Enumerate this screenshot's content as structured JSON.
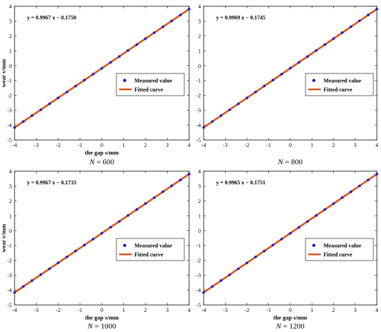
{
  "chart_data": [
    {
      "type": "scatter",
      "panel": "top-left",
      "xlabel": "the gap s/mm",
      "ylabel": "wear v/mm",
      "xlim": [
        -4,
        4
      ],
      "ylim": [
        -5,
        4
      ],
      "xticks": [
        "-4",
        "-3",
        "-2",
        "-1",
        "0",
        "1",
        "2",
        "3",
        "4"
      ],
      "yticks": [
        "4",
        "3",
        "2",
        "1",
        "0",
        "-1",
        "-2",
        "-3",
        "-4",
        "-5"
      ],
      "equation": "y = 0.9967 x − 0.1750",
      "slope": 0.9967,
      "intercept": -0.175,
      "caption_var": "N",
      "caption_val": " = 600",
      "legend": {
        "position": "center-right",
        "measured": "Measured value",
        "fitted": "Fitted curve"
      },
      "series": [
        {
          "name": "Measured value",
          "x": [
            -4,
            -3.6,
            -3.2,
            -2.8,
            -2.4,
            -2,
            -1.6,
            -1.2,
            -0.8,
            -0.4,
            0,
            0.4,
            0.8,
            1.2,
            1.6,
            2,
            2.4,
            2.8,
            3.2,
            3.6,
            4
          ],
          "y": [
            -4.16,
            -3.76,
            -3.36,
            -2.97,
            -2.57,
            -2.17,
            -1.77,
            -1.37,
            -0.97,
            -0.57,
            -0.18,
            0.22,
            0.62,
            1.02,
            1.42,
            1.82,
            2.22,
            2.62,
            3.01,
            3.41,
            3.81
          ]
        },
        {
          "name": "Fitted curve",
          "x": [
            -4,
            4
          ],
          "y": [
            -4.16,
            3.81
          ]
        }
      ],
      "colors": {
        "marker": "#1a1adb",
        "line": "#d95319"
      }
    },
    {
      "type": "scatter",
      "panel": "top-right",
      "xlabel": "",
      "ylabel": "",
      "xlim": [
        -4,
        4
      ],
      "ylim": [
        -5,
        4
      ],
      "xticks": [
        "-4",
        "-3",
        "-2",
        "-1",
        "0",
        "1",
        "2",
        "3",
        "4"
      ],
      "yticks": [
        "4",
        "3",
        "2",
        "1",
        "0",
        "-1",
        "-2",
        "-3",
        "-4",
        "-5"
      ],
      "equation": "y = 0.9969 x − 0.1745",
      "slope": 0.9969,
      "intercept": -0.1745,
      "caption_var": "N",
      "caption_val": " = 800",
      "legend": {
        "position": "center-right",
        "measured": "Measured value",
        "fitted": "Fitted curve"
      },
      "series": [
        {
          "name": "Measured value",
          "x": [
            -4,
            -3.6,
            -3.2,
            -2.8,
            -2.4,
            -2,
            -1.6,
            -1.2,
            -0.8,
            -0.4,
            0,
            0.4,
            0.8,
            1.2,
            1.6,
            2,
            2.4,
            2.8,
            3.2,
            3.6,
            4
          ],
          "y": [
            -4.16,
            -3.76,
            -3.36,
            -2.97,
            -2.57,
            -2.17,
            -1.77,
            -1.37,
            -0.97,
            -0.57,
            -0.17,
            0.22,
            0.62,
            1.02,
            1.42,
            1.82,
            2.22,
            2.62,
            3.02,
            3.41,
            3.81
          ]
        },
        {
          "name": "Fitted curve",
          "x": [
            -4,
            4
          ],
          "y": [
            -4.16,
            3.81
          ]
        }
      ],
      "colors": {
        "marker": "#1a1adb",
        "line": "#d95319"
      }
    },
    {
      "type": "scatter",
      "panel": "bottom-left",
      "xlabel": "the gap s/mm",
      "ylabel": "wear v/mm",
      "xlim": [
        -4,
        4
      ],
      "ylim": [
        -5,
        4
      ],
      "xticks": [
        "-4",
        "-3",
        "-2",
        "-1",
        "0",
        "1",
        "2",
        "3",
        "4"
      ],
      "yticks": [
        "4",
        "3",
        "2",
        "1",
        "0",
        "-1",
        "-2",
        "-3",
        "-4",
        "-5"
      ],
      "equation": "y = 0.9967 x − 0.1733",
      "slope": 0.9967,
      "intercept": -0.1733,
      "caption_var": "N",
      "caption_val": " = 1000",
      "legend": {
        "position": "center-right",
        "measured": "Measured value",
        "fitted": "Fitted curve"
      },
      "series": [
        {
          "name": "Measured value",
          "x": [
            -4,
            -3.6,
            -3.2,
            -2.8,
            -2.4,
            -2,
            -1.6,
            -1.2,
            -0.8,
            -0.4,
            0,
            0.4,
            0.8,
            1.2,
            1.6,
            2,
            2.4,
            2.8,
            3.2,
            3.6,
            4
          ],
          "y": [
            -4.16,
            -3.76,
            -3.36,
            -2.96,
            -2.57,
            -2.17,
            -1.77,
            -1.37,
            -0.97,
            -0.57,
            -0.17,
            0.23,
            0.62,
            1.02,
            1.42,
            1.82,
            2.22,
            2.62,
            3.02,
            3.41,
            3.81
          ]
        },
        {
          "name": "Fitted curve",
          "x": [
            -4,
            4
          ],
          "y": [
            -4.16,
            3.81
          ]
        }
      ],
      "colors": {
        "marker": "#1a1adb",
        "line": "#d95319"
      }
    },
    {
      "type": "scatter",
      "panel": "bottom-right",
      "xlabel": "the gap s/mm",
      "ylabel": "",
      "xlim": [
        -4,
        4
      ],
      "ylim": [
        -5,
        4
      ],
      "xticks": [
        "-4",
        "-3",
        "-2",
        "-1",
        "0",
        "1",
        "2",
        "3",
        "4"
      ],
      "yticks": [
        "4",
        "3",
        "2",
        "1",
        "0",
        "-1",
        "-2",
        "-3",
        "-4",
        "-5"
      ],
      "equation": "y = 0.9965 x − 0.1751",
      "slope": 0.9965,
      "intercept": -0.1751,
      "caption_var": "N",
      "caption_val": " = 1200",
      "legend": {
        "position": "center-right",
        "measured": "Measured value",
        "fitted": "Fitted curve"
      },
      "series": [
        {
          "name": "Measured value",
          "x": [
            -4,
            -3.6,
            -3.2,
            -2.8,
            -2.4,
            -2,
            -1.6,
            -1.2,
            -0.8,
            -0.4,
            0,
            0.4,
            0.8,
            1.2,
            1.6,
            2,
            2.4,
            2.8,
            3.2,
            3.6,
            4
          ],
          "y": [
            -4.16,
            -3.76,
            -3.36,
            -2.97,
            -2.57,
            -2.17,
            -1.77,
            -1.37,
            -0.97,
            -0.57,
            -0.18,
            0.22,
            0.62,
            1.02,
            1.42,
            1.82,
            2.22,
            2.61,
            3.01,
            3.41,
            3.81
          ]
        },
        {
          "name": "Fitted curve",
          "x": [
            -4,
            4
          ],
          "y": [
            -4.16,
            3.81
          ]
        }
      ],
      "colors": {
        "marker": "#1a1adb",
        "line": "#d95319"
      }
    }
  ]
}
